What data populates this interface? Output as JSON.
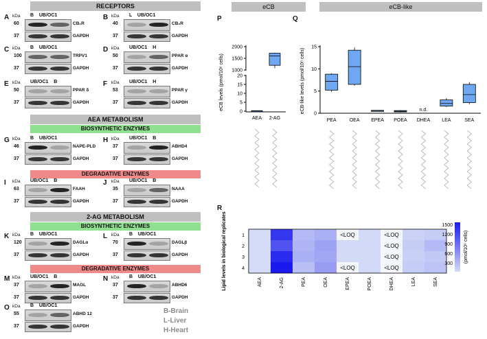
{
  "banners": {
    "receptors": "RECEPTORS",
    "aea_metabolism": "AEA METABOLISM",
    "biosynthetic1": "BIOSYNTHETIC ENZYMES",
    "degradative1": "DEGRADATIVE ENZYMES",
    "ag_metabolism": "2-AG METABOLISM",
    "biosynthetic2": "BIOSYNTHETIC ENZYMES",
    "degradative2": "DEGRADATIVE ENZYMES",
    "ecb": "eCB",
    "ecb_like": "eCB-like"
  },
  "kda": "kDa",
  "blots": {
    "A": {
      "letter": "A",
      "cols": "B    UB/OC1",
      "marker1": "60",
      "marker2": "37",
      "label1": "CB₁R",
      "label2": "GAPDH"
    },
    "B": {
      "letter": "B",
      "cols": "L    UB/OC1",
      "marker1": "40",
      "marker2": "37",
      "label1": "CB₂R",
      "label2": "GAPDH"
    },
    "C": {
      "letter": "C",
      "cols": "B    UB/OC1",
      "marker1": "100",
      "marker2": "37",
      "label1": "TRPV1",
      "label2": "GAPDH"
    },
    "D": {
      "letter": "D",
      "cols": "UB/OC1    H",
      "marker1": "50",
      "marker2": "37",
      "label1": "PPAR α",
      "label2": "GAPDH"
    },
    "E": {
      "letter": "E",
      "cols": "UB/OC1    B",
      "marker1": "50",
      "marker2": "37",
      "label1": "PPAR δ",
      "label2": "GAPDH"
    },
    "F": {
      "letter": "F",
      "cols": "UB/OC1    H",
      "marker1": "53",
      "marker2": "37",
      "label1": "PPAR γ",
      "label2": "GAPDH"
    },
    "G": {
      "letter": "G",
      "cols": "B    UB/OC1",
      "marker1": "46",
      "marker2": "37",
      "label1": "NAPE-PLD",
      "label2": "GAPDH"
    },
    "H": {
      "letter": "H",
      "cols": "UB/OC1    B",
      "marker1": "37",
      "marker2": "37",
      "label1": "ABHD4",
      "label2": "GAPDH"
    },
    "I": {
      "letter": "I",
      "cols": "UB/OC1    B",
      "marker1": "63",
      "marker2": "37",
      "label1": "FAAH",
      "label2": "GAPDH"
    },
    "J": {
      "letter": "J",
      "cols": "UB/OC1    B",
      "marker1": "35",
      "marker2": "37",
      "label1": "NAAA",
      "label2": "GAPDH"
    },
    "K": {
      "letter": "K",
      "cols": "B    UB/OC1",
      "marker1": "120",
      "marker2": "37",
      "label1": "DAGLα",
      "label2": "GAPDH"
    },
    "L": {
      "letter": "L",
      "cols": "B    UB/OC1",
      "marker1": "70",
      "marker2": "37",
      "label1": "DAGLβ",
      "label2": "GAPDH"
    },
    "M": {
      "letter": "M",
      "cols": "UB/OC1    B",
      "marker1": "37",
      "marker2": "37",
      "label1": "MAGL",
      "label2": "GAPDH"
    },
    "N": {
      "letter": "N",
      "cols": "B    UB/OC1",
      "marker1": "37",
      "marker2": "37",
      "label1": "ABHD6",
      "label2": "GAPDH"
    },
    "O": {
      "letter": "O",
      "cols": "B    UB/OC1",
      "marker1": "55",
      "marker2": "37",
      "label1": "ABHD 12",
      "label2": "GAPDH"
    }
  },
  "tissue_legend": {
    "b": "B-Brain",
    "l": "L-Liver",
    "h": "H-Heart"
  },
  "panel_letters": {
    "p": "P",
    "q": "Q",
    "r": "R"
  },
  "chart_data": [
    {
      "type": "box",
      "panel": "P",
      "categories": [
        "AEA",
        "2-AG"
      ],
      "ylabel": "eCB levels (pmol/10⁶ cells)",
      "y_ticks_low": [
        "0",
        "5",
        "10",
        "15",
        "20"
      ],
      "y_ticks_high": [
        "1000",
        "1500",
        "2000"
      ],
      "axis_break": true,
      "boxes": [
        {
          "name": "AEA",
          "min": 0.2,
          "q1": 0.22,
          "median": 0.25,
          "q3": 0.28,
          "max": 0.3
        },
        {
          "name": "2-AG",
          "min": 1080,
          "q1": 1200,
          "median": 1600,
          "q3": 1720,
          "max": 1740
        }
      ]
    },
    {
      "type": "box",
      "panel": "Q",
      "categories": [
        "PEA",
        "OEA",
        "EPEA",
        "POEA",
        "DHEA",
        "LEA",
        "SEA"
      ],
      "ylabel": "eCB-like levels (pmol/10⁶ cells)",
      "ylim": [
        0,
        15
      ],
      "y_ticks": [
        "0",
        "5",
        "10",
        "15"
      ],
      "annotations": [
        {
          "category": "DHEA",
          "text": "n.d."
        }
      ],
      "boxes": [
        {
          "name": "PEA",
          "min": 4.8,
          "q1": 5.2,
          "median": 7.2,
          "q3": 8.8,
          "max": 9.0
        },
        {
          "name": "OEA",
          "min": 6.2,
          "q1": 6.5,
          "median": 10.5,
          "q3": 14.2,
          "max": 14.8
        },
        {
          "name": "EPEA",
          "min": 0.5,
          "q1": 0.55,
          "median": 0.6,
          "q3": 0.65,
          "max": 0.7
        },
        {
          "name": "POEA",
          "min": 0.2,
          "q1": 0.3,
          "median": 0.45,
          "q3": 0.6,
          "max": 0.7
        },
        {
          "name": "LEA",
          "min": 1.4,
          "q1": 1.6,
          "median": 2.2,
          "q3": 3.0,
          "max": 3.4
        },
        {
          "name": "SEA",
          "min": 2.0,
          "q1": 2.4,
          "median": 4.2,
          "q3": 6.5,
          "max": 7.0
        }
      ]
    },
    {
      "type": "heatmap",
      "panel": "R",
      "ylabel": "Lipid levels in biological replicates",
      "rows": [
        "1",
        "2",
        "3",
        "4"
      ],
      "columns": [
        "AEA",
        "2-AG",
        "PEA",
        "OEA",
        "EPEA",
        "POEA",
        "DHEA",
        "LEA",
        "SEA"
      ],
      "values": [
        [
          0.3,
          1450,
          7,
          9,
          null,
          0.5,
          null,
          2,
          3
        ],
        [
          0.3,
          1200,
          8,
          12,
          0.6,
          0.6,
          null,
          3,
          7
        ],
        [
          0.25,
          1550,
          9,
          11,
          0.5,
          0.4,
          null,
          2.5,
          4
        ],
        [
          0.2,
          1700,
          6,
          13,
          null,
          0.7,
          null,
          3.2,
          5
        ]
      ],
      "loq_text": "<LOQ",
      "loq_cells": [
        [
          0,
          4
        ],
        [
          0,
          6
        ],
        [
          1,
          6
        ],
        [
          2,
          6
        ],
        [
          3,
          4
        ],
        [
          3,
          6
        ]
      ],
      "colorbar_label": "(pmol/10⁶ cells)",
      "colorbar_ticks": [
        "1500",
        "1200",
        "900",
        "600",
        "300"
      ],
      "colors": {
        "low": "#d4dcf6",
        "high": "#1a1aee"
      }
    }
  ]
}
